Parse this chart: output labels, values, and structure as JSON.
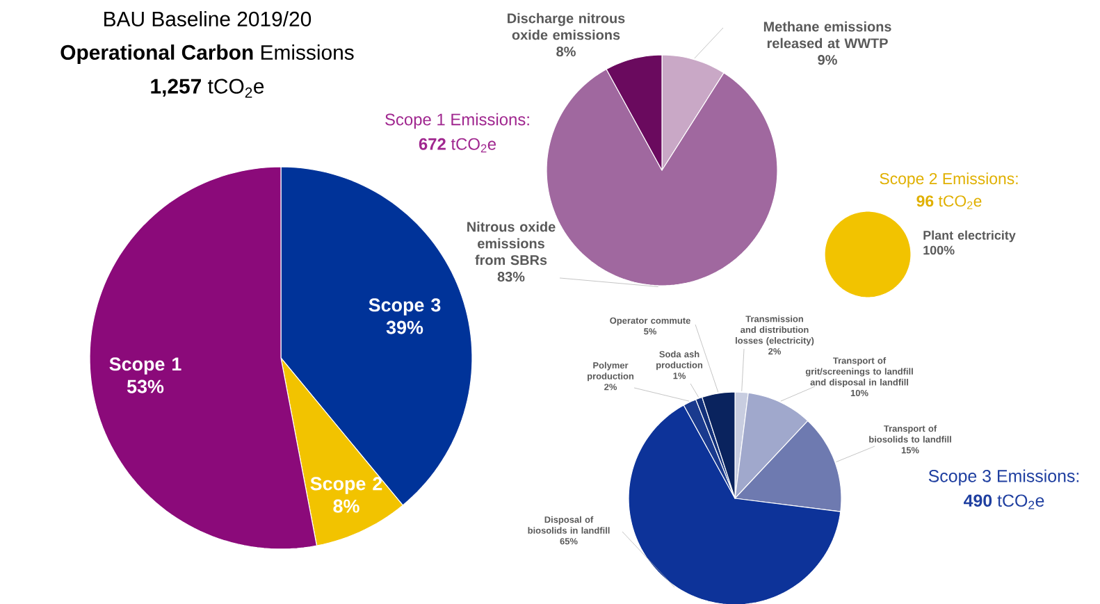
{
  "chart_data": [
    {
      "type": "pie",
      "title": "BAU Baseline 2019/20",
      "subtitle": "**Operational Carbon** Emissions",
      "annotations": [
        "**1,257** tCO$_{2}$e"
      ],
      "categories": [
        "Scope 3",
        "Scope 2",
        "Scope 1"
      ],
      "values": [
        39,
        8,
        53
      ],
      "value_labels": [
        "39%",
        "8%",
        "53%"
      ],
      "colors": [
        "#003399",
        "#f2c300",
        "#8b0a7a"
      ]
    },
    {
      "type": "pie",
      "title": "Scope 1 Emissions:",
      "subtitle": "**672** tCO$_{2}$e",
      "categories": [
        "Methane emissions released at WWTP",
        "Nitrous oxide emissions from SBRs",
        "Discharge nitrous oxide emissions"
      ],
      "values": [
        9,
        83,
        8
      ],
      "value_labels": [
        "9%",
        "83%",
        "8%"
      ],
      "colors": [
        "#c9a8c6",
        "#a0689f",
        "#6a0a5e"
      ]
    },
    {
      "type": "pie",
      "title": "Scope 2 Emissions:",
      "subtitle": "**96** tCO$_{2}$e",
      "categories": [
        "Plant electricity"
      ],
      "values": [
        100
      ],
      "value_labels": [
        "100%"
      ],
      "colors": [
        "#f2c300"
      ]
    },
    {
      "type": "pie",
      "title": "Scope 3 Emissions:",
      "subtitle": "**490** tCO$_{2}$e",
      "categories": [
        "Transmission and distribution losses (electricity)",
        "Transport of grit/screenings to landfill and disposal in landfill",
        "Transport of biosolids to landfill",
        "Disposal of biosolids in landfill",
        "Polymer production",
        "Soda ash production",
        "Operator commute"
      ],
      "values": [
        2,
        10,
        15,
        65,
        2,
        1,
        5
      ],
      "value_labels": [
        "2%",
        "10%",
        "15%",
        "65%",
        "2%",
        "1%",
        "5%"
      ],
      "colors": [
        "#c8cde0",
        "#a0a8cc",
        "#6e7ab0",
        "#0d3399",
        "#1a3a8e",
        "#12307a",
        "#0a235e"
      ]
    }
  ]
}
